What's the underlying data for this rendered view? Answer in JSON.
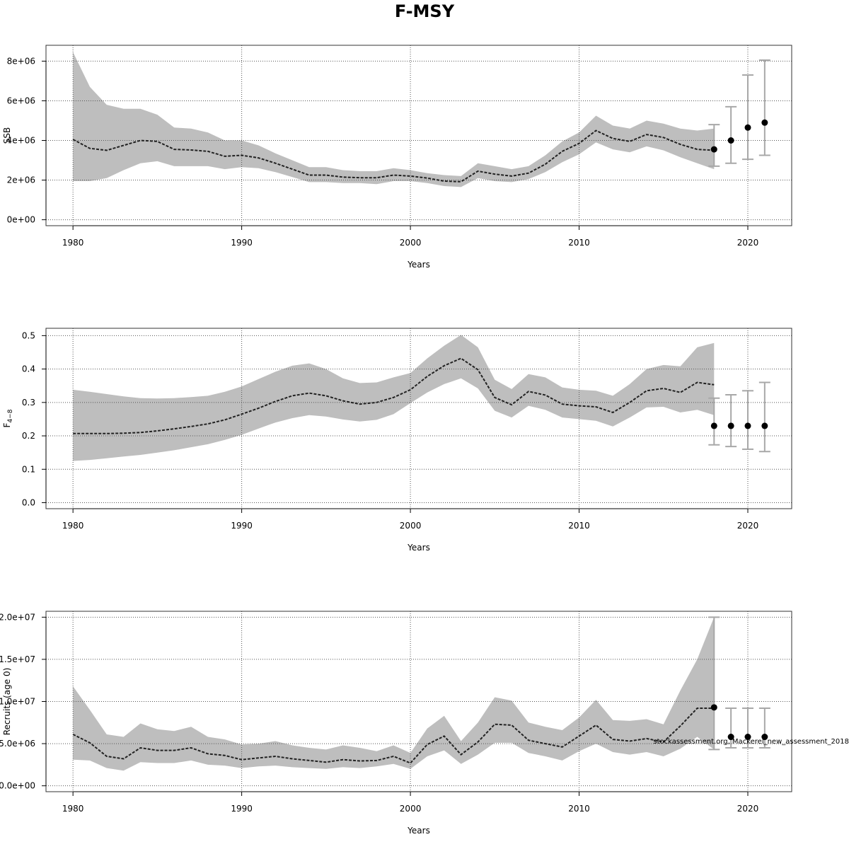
{
  "title": "F-MSY",
  "watermark": "stockassessment.org, Mackerel_new_assessment_2018",
  "colors": {
    "band": "#bebebe",
    "line": "#222222",
    "point": "#000000",
    "errorbar": "#a8a8a8",
    "grid": "#555555",
    "frame": "#333333"
  },
  "chart_data": [
    {
      "type": "line",
      "ylabel": "SSB",
      "xlabel": "Years",
      "xlim": [
        1978.4,
        2022.6
      ],
      "ylim": [
        -300000,
        8800000
      ],
      "xticks": [
        1980,
        1990,
        2000,
        2010,
        2020
      ],
      "yticks": [
        0,
        2000000,
        4000000,
        6000000,
        8000000
      ],
      "ytick_labels": [
        "0e+00",
        "2e+06",
        "4e+06",
        "6e+06",
        "8e+06"
      ],
      "grid": true,
      "series": [
        {
          "kind": "estimate_with_ci",
          "x": [
            1980,
            1981,
            1982,
            1983,
            1984,
            1985,
            1986,
            1987,
            1988,
            1989,
            1990,
            1991,
            1992,
            1993,
            1994,
            1995,
            1996,
            1997,
            1998,
            1999,
            2000,
            2001,
            2002,
            2003,
            2004,
            2005,
            2006,
            2007,
            2008,
            2009,
            2010,
            2011,
            2012,
            2013,
            2014,
            2015,
            2016,
            2017,
            2018
          ],
          "y": [
            4050000,
            3600000,
            3500000,
            3750000,
            4000000,
            3950000,
            3550000,
            3520000,
            3450000,
            3200000,
            3250000,
            3120000,
            2850000,
            2550000,
            2250000,
            2250000,
            2150000,
            2120000,
            2120000,
            2250000,
            2200000,
            2100000,
            1950000,
            1920000,
            2450000,
            2300000,
            2200000,
            2350000,
            2800000,
            3450000,
            3850000,
            4500000,
            4100000,
            3950000,
            4300000,
            4150000,
            3800000,
            3550000,
            3500000
          ],
          "low": [
            1950000,
            1950000,
            2100000,
            2500000,
            2850000,
            2950000,
            2700000,
            2700000,
            2700000,
            2550000,
            2650000,
            2600000,
            2400000,
            2150000,
            1900000,
            1900000,
            1850000,
            1850000,
            1800000,
            1950000,
            1950000,
            1850000,
            1700000,
            1650000,
            2100000,
            1950000,
            1900000,
            2050000,
            2400000,
            2900000,
            3300000,
            3900000,
            3550000,
            3400000,
            3700000,
            3500000,
            3150000,
            2850000,
            2550000
          ],
          "high": [
            8450000,
            6700000,
            5800000,
            5600000,
            5600000,
            5300000,
            4650000,
            4600000,
            4400000,
            4000000,
            4000000,
            3750000,
            3350000,
            3000000,
            2650000,
            2650000,
            2500000,
            2450000,
            2450000,
            2600000,
            2500000,
            2350000,
            2250000,
            2200000,
            2850000,
            2700000,
            2550000,
            2700000,
            3250000,
            3950000,
            4400000,
            5250000,
            4750000,
            4600000,
            5000000,
            4850000,
            4600000,
            4500000,
            4600000
          ]
        },
        {
          "kind": "forecast_points",
          "x": [
            2018,
            2019,
            2020,
            2021
          ],
          "y": [
            3550000,
            4000000,
            4650000,
            4900000
          ],
          "low": [
            2700000,
            2850000,
            3050000,
            3250000
          ],
          "high": [
            4800000,
            5700000,
            7300000,
            8050000
          ]
        }
      ]
    },
    {
      "type": "line",
      "ylabel": "F",
      "ylabel_sub": "4−8",
      "xlabel": "Years",
      "xlim": [
        1978.4,
        2022.6
      ],
      "ylim": [
        -0.018,
        0.522
      ],
      "xticks": [
        1980,
        1990,
        2000,
        2010,
        2020
      ],
      "yticks": [
        0,
        0.1,
        0.2,
        0.3,
        0.4,
        0.5
      ],
      "ytick_labels": [
        "0.0",
        "0.1",
        "0.2",
        "0.3",
        "0.4",
        "0.5"
      ],
      "grid": true,
      "series": [
        {
          "kind": "estimate_with_ci",
          "x": [
            1980,
            1981,
            1982,
            1983,
            1984,
            1985,
            1986,
            1987,
            1988,
            1989,
            1990,
            1991,
            1992,
            1993,
            1994,
            1995,
            1996,
            1997,
            1998,
            1999,
            2000,
            2001,
            2002,
            2003,
            2004,
            2005,
            2006,
            2007,
            2008,
            2009,
            2010,
            2011,
            2012,
            2013,
            2014,
            2015,
            2016,
            2017,
            2018
          ],
          "y": [
            0.207,
            0.207,
            0.207,
            0.208,
            0.21,
            0.215,
            0.221,
            0.228,
            0.236,
            0.248,
            0.265,
            0.283,
            0.303,
            0.32,
            0.328,
            0.32,
            0.305,
            0.295,
            0.3,
            0.315,
            0.338,
            0.378,
            0.41,
            0.432,
            0.398,
            0.315,
            0.293,
            0.333,
            0.322,
            0.295,
            0.29,
            0.287,
            0.27,
            0.3,
            0.335,
            0.342,
            0.33,
            0.36,
            0.353
          ],
          "low": [
            0.125,
            0.128,
            0.133,
            0.138,
            0.143,
            0.15,
            0.157,
            0.166,
            0.175,
            0.188,
            0.203,
            0.222,
            0.24,
            0.253,
            0.262,
            0.258,
            0.249,
            0.243,
            0.248,
            0.265,
            0.298,
            0.33,
            0.355,
            0.372,
            0.342,
            0.275,
            0.255,
            0.29,
            0.278,
            0.255,
            0.25,
            0.245,
            0.228,
            0.255,
            0.285,
            0.287,
            0.27,
            0.278,
            0.262
          ],
          "high": [
            0.338,
            0.332,
            0.325,
            0.318,
            0.313,
            0.312,
            0.313,
            0.316,
            0.32,
            0.332,
            0.348,
            0.37,
            0.392,
            0.41,
            0.417,
            0.4,
            0.372,
            0.358,
            0.36,
            0.375,
            0.388,
            0.432,
            0.47,
            0.502,
            0.465,
            0.368,
            0.34,
            0.385,
            0.375,
            0.345,
            0.338,
            0.335,
            0.32,
            0.355,
            0.4,
            0.412,
            0.408,
            0.465,
            0.478
          ]
        },
        {
          "kind": "forecast_points",
          "x": [
            2018,
            2019,
            2020,
            2021
          ],
          "y": [
            0.23,
            0.23,
            0.23,
            0.23
          ],
          "low": [
            0.173,
            0.168,
            0.16,
            0.153
          ],
          "high": [
            0.313,
            0.323,
            0.335,
            0.36
          ]
        }
      ]
    },
    {
      "type": "line",
      "ylabel": "Recruits (age 0)",
      "xlabel": "Years",
      "xlim": [
        1978.4,
        2022.6
      ],
      "ylim": [
        -700000,
        20700000
      ],
      "xticks": [
        1980,
        1990,
        2000,
        2010,
        2020
      ],
      "yticks": [
        0,
        5000000,
        10000000,
        15000000,
        20000000
      ],
      "ytick_labels": [
        "0.0e+00",
        "5.0e+06",
        "1.0e+07",
        "1.5e+07",
        "2.0e+07"
      ],
      "grid": true,
      "series": [
        {
          "kind": "estimate_with_ci",
          "x": [
            1980,
            1981,
            1982,
            1983,
            1984,
            1985,
            1986,
            1987,
            1988,
            1989,
            1990,
            1991,
            1992,
            1993,
            1994,
            1995,
            1996,
            1997,
            1998,
            1999,
            2000,
            2001,
            2002,
            2003,
            2004,
            2005,
            2006,
            2007,
            2008,
            2009,
            2010,
            2011,
            2012,
            2013,
            2014,
            2015,
            2016,
            2017,
            2018
          ],
          "y": [
            6100000,
            5100000,
            3500000,
            3200000,
            4500000,
            4200000,
            4200000,
            4500000,
            3800000,
            3600000,
            3100000,
            3300000,
            3500000,
            3200000,
            3000000,
            2800000,
            3100000,
            2950000,
            3000000,
            3500000,
            2700000,
            4900000,
            5900000,
            3700000,
            5200000,
            7300000,
            7200000,
            5400000,
            5000000,
            4600000,
            5900000,
            7200000,
            5500000,
            5300000,
            5600000,
            5200000,
            7100000,
            9200000,
            9200000
          ],
          "low": [
            3100000,
            3000000,
            2100000,
            1800000,
            2800000,
            2700000,
            2700000,
            3000000,
            2500000,
            2400000,
            2100000,
            2300000,
            2400000,
            2200000,
            2100000,
            2000000,
            2200000,
            2100000,
            2300000,
            2600000,
            2000000,
            3500000,
            4200000,
            2600000,
            3700000,
            5100000,
            5100000,
            3900000,
            3500000,
            3000000,
            4100000,
            5000000,
            4000000,
            3700000,
            4000000,
            3500000,
            4400000,
            5800000,
            4300000
          ],
          "high": [
            11800000,
            9000000,
            6100000,
            5800000,
            7400000,
            6700000,
            6500000,
            7000000,
            5800000,
            5500000,
            4900000,
            5000000,
            5300000,
            4800000,
            4500000,
            4300000,
            4800000,
            4500000,
            4100000,
            4800000,
            3900000,
            6800000,
            8300000,
            5300000,
            7500000,
            10500000,
            10100000,
            7500000,
            7000000,
            6600000,
            8100000,
            10200000,
            7800000,
            7700000,
            7900000,
            7300000,
            11300000,
            15000000,
            20000000
          ]
        },
        {
          "kind": "forecast_points",
          "x": [
            2018,
            2019,
            2020,
            2021
          ],
          "y": [
            9300000,
            5800000,
            5800000,
            5800000
          ],
          "low": [
            4300000,
            4500000,
            4500000,
            4500000
          ],
          "high": [
            20000000,
            9200000,
            9200000,
            9200000
          ]
        }
      ]
    }
  ]
}
